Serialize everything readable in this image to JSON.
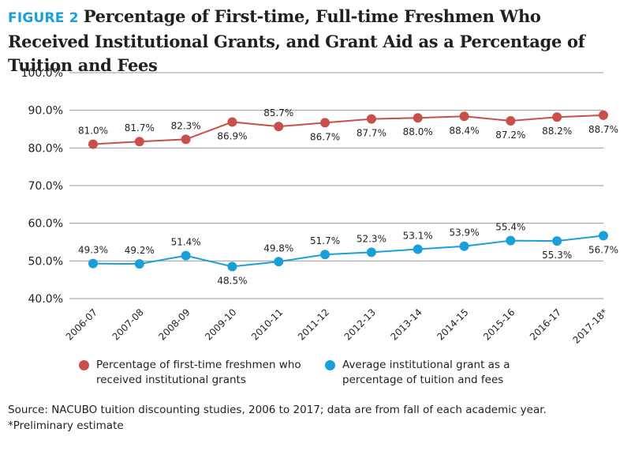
{
  "figure_label": "FIGURE 2",
  "title": "Percentage of First-time, Full-time Freshmen Who Received Institutional Grants, and Grant Aid as a Percentage of Tuition and Fees",
  "source": "Source: NACUBO tuition discounting studies, 2006 to 2017; data are from fall of each academic year. *Preliminary estimate",
  "chart_data": {
    "type": "line",
    "categories": [
      "2006-07",
      "2007-08",
      "2008-09",
      "2009-10",
      "2010-11",
      "2011-12",
      "2012-13",
      "2013-14",
      "2014-15",
      "2015-16",
      "2016-17",
      "2017-18*"
    ],
    "ylim": [
      40,
      100
    ],
    "yticks": [
      40,
      50,
      60,
      70,
      80,
      90,
      100
    ],
    "ytick_labels": [
      "40.0%",
      "50.0%",
      "60.0%",
      "70.0%",
      "80.0%",
      "90.0%",
      "100.0%"
    ],
    "grid": true,
    "legend_position": "bottom",
    "series": [
      {
        "name": "Percentage of first-time freshmen who received institutional grants",
        "color": "#c8504b",
        "values": [
          81.0,
          81.7,
          82.3,
          86.9,
          85.7,
          86.7,
          87.7,
          88.0,
          88.4,
          87.2,
          88.2,
          88.7
        ],
        "labels": [
          "81.0%",
          "81.7%",
          "82.3%",
          "86.9%",
          "85.7%",
          "86.7%",
          "87.7%",
          "88.0%",
          "88.4%",
          "87.2%",
          "88.2%",
          "88.7%"
        ]
      },
      {
        "name": "Average institutional grant as a percentage of tuition and fees",
        "color": "#1a9fd9",
        "values": [
          49.3,
          49.2,
          51.4,
          48.5,
          49.8,
          51.7,
          52.3,
          53.1,
          53.9,
          55.4,
          55.3,
          56.7
        ],
        "labels": [
          "49.3%",
          "49.2%",
          "51.4%",
          "48.5%",
          "49.8%",
          "51.7%",
          "52.3%",
          "53.1%",
          "53.9%",
          "55.4%",
          "55.3%",
          "56.7%"
        ]
      }
    ]
  }
}
